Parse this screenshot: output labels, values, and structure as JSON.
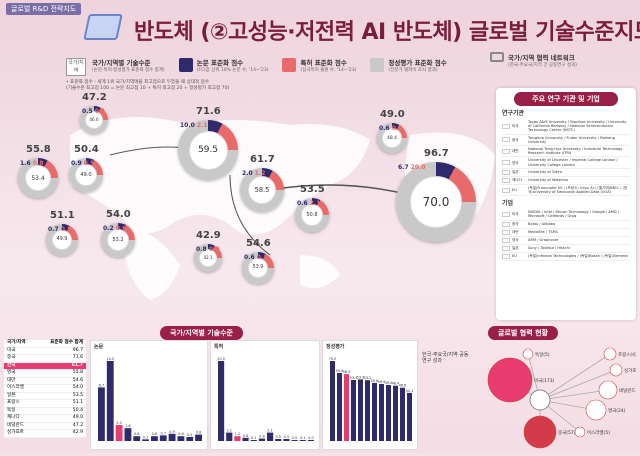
{
  "tag": "글로벌 R&D 전략지도",
  "title": "반도체 (②고성능·저전력 AI 반도체) 글로벌 기술수준지도",
  "country_label": "국가/지역",
  "legend": [
    {
      "title": "국가/지역별 기술수준",
      "desc": "(논문·특허·정성평가 표준화 점수 합계)",
      "color": "#ffffff"
    },
    {
      "title": "논문 표준화 점수",
      "desc": "(FCI값 상위 10% 논문 수, '14~'23)",
      "color": "#2e2a6b"
    },
    {
      "title": "특허 표준화 점수",
      "desc": "(삼극특허 출원 수, '14~'23)",
      "color": "#e96a6a"
    },
    {
      "title": "정성평가 표준화 점수",
      "desc": "(전문가 델파이 조사 결과)",
      "color": "#c9c9c9"
    }
  ],
  "note_lines": [
    "• 표준화 점수 : 세계 1위 국가/지역에을 최고점으로 두었을 때 상대적 점수",
    "(기술수준 최고점 100 = 논문 최고점 10 + 특허 최고점 20 + 정성평가 최고점 70)"
  ],
  "network_title": "국가/지역 협력 네트워크",
  "network_desc": "(한국-주요국/지역 간 공동연구 성과)",
  "countries": [
    {
      "name": "미국",
      "total": "96.7",
      "paper": "6.7",
      "patent": "20.0",
      "qual": "70.0"
    },
    {
      "name": "중국",
      "total": "71.6",
      "paper": "10.0",
      "patent": "2.1",
      "qual": "59.5"
    },
    {
      "name": "한국",
      "total": "61.7",
      "paper": "2.0",
      "patent": "1.2",
      "qual": "58.5"
    },
    {
      "name": "영국",
      "total": "55.8",
      "paper": "1.6",
      "patent": "0.8",
      "qual": "53.4"
    },
    {
      "name": "독일",
      "total": "50.4",
      "paper": "0.9",
      "patent": "0.5",
      "qual": "49.0"
    },
    {
      "name": "프랑스",
      "total": "51.1",
      "paper": "0.7",
      "patent": "0.5",
      "qual": "49.9"
    },
    {
      "name": "이스라엘",
      "total": "54.0",
      "paper": "0.2",
      "patent": "0.6",
      "qual": "53.2"
    },
    {
      "name": "일본",
      "total": "53.5",
      "paper": "0.6",
      "patent": "2.1",
      "qual": "50.8"
    },
    {
      "name": "대만",
      "total": "54.6",
      "paper": "0.6",
      "patent": "0.1",
      "qual": "53.9"
    },
    {
      "name": "네덜란드",
      "total": "47.2",
      "paper": "0.5",
      "patent": "0.1",
      "qual": "46.6"
    },
    {
      "name": "캐나다",
      "total": "49.0",
      "paper": "0.6",
      "patent": "0.0",
      "qual": "48.4"
    },
    {
      "name": "싱가포르",
      "total": "42.9",
      "paper": "0.8",
      "patent": "0.0",
      "qual": "42.1"
    }
  ],
  "panel": {
    "title": "주요 연구 기관 및 기업",
    "sec1": "연구기관",
    "sec2": "기업",
    "col_country": "국가/지역",
    "col_org": "기관",
    "institutions": [
      {
        "country": "미국",
        "orgs": "Texas A&M University / Stanford University / University of California Berkeley / National Semiconductor Technology Center (NSTC)"
      },
      {
        "country": "중국",
        "orgs": "Tsinghua University / Fudan University / Beihang University"
      },
      {
        "country": "대만",
        "orgs": "National Tsing Hua University / Industrial Technology Research Institute (ITRI)"
      },
      {
        "country": "영국",
        "orgs": "University of Leicester / Imperial College London / University College London"
      },
      {
        "country": "일본",
        "orgs": "University of Tokyo"
      },
      {
        "country": "캐나다",
        "orgs": "University of Waterloo"
      },
      {
        "country": "EU",
        "orgs": "(독일)Fraunhofer IIS / (프랑스) Onyx AI / (벨기에)IMEC / (영국)University of Edinburgh Applied Data (UOA)"
      }
    ],
    "companies": [
      {
        "country": "미국",
        "orgs": "NVIDIA / Intel / Micron Technology / Google / AMD / Microsoft / Cerebras / Groq"
      },
      {
        "country": "중국",
        "orgs": "Baidu / Alibaba"
      },
      {
        "country": "대만",
        "orgs": "MediaTek / TSMC"
      },
      {
        "country": "영국",
        "orgs": "ARM / Graphcore"
      },
      {
        "country": "일본",
        "orgs": "Sony / Toshiba / Hitachi"
      },
      {
        "country": "EU",
        "orgs": "(독일)Infineon Technologies / (독일)Bosch / (독일)Siemens"
      }
    ]
  },
  "bottom": {
    "head1": "국가/지역별 기술수준",
    "head2": "글로벌 협력 현황",
    "rank_headers": [
      "국가/지역",
      "표준화 점수 합계"
    ],
    "charts": [
      {
        "title": "논문",
        "max": "10.0"
      },
      {
        "title": "특허",
        "max": "20.0"
      },
      {
        "title": "정성평가",
        "max": "70.0"
      }
    ],
    "network_label": "한국-주요국/지역 공동연구 성과",
    "network": [
      {
        "name": "미국",
        "count": "173"
      },
      {
        "name": "중국",
        "count": "57"
      },
      {
        "name": "프랑스",
        "count": "4"
      },
      {
        "name": "싱가포르",
        "count": "6"
      },
      {
        "name": "네덜란드",
        "count": "22"
      },
      {
        "name": "영국",
        "count": "24"
      },
      {
        "name": "독일",
        "count": "5"
      },
      {
        "name": "이스라엘",
        "count": "5"
      }
    ]
  },
  "colors": {
    "paper": "#2e2a6b",
    "patent": "#e96a6a",
    "qual": "#c9c9c9",
    "accent": "#9a1f46",
    "highlight": "#e83b6e"
  }
}
